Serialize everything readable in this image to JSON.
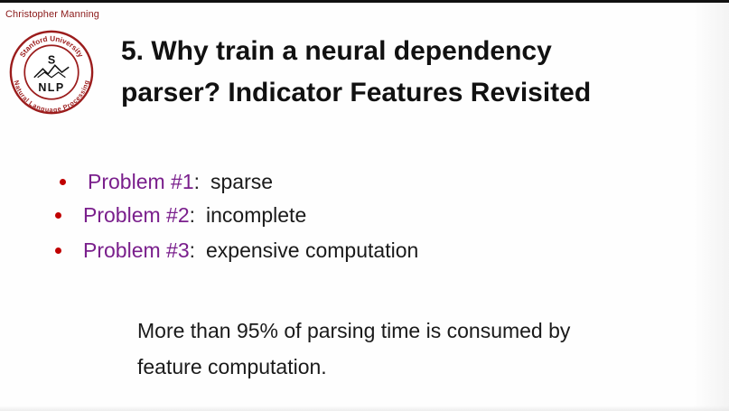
{
  "header": {
    "author": "Christopher Manning"
  },
  "logo": {
    "ring_text_top": "Stanford University",
    "ring_text_bottom": "Natural Language Processing",
    "center_letter": "S",
    "center_word": "NLP",
    "ring_color": "#9b1c1c"
  },
  "title": {
    "line1": "5. Why train a neural dependency",
    "line2": "parser? Indicator Features Revisited"
  },
  "bullets": [
    {
      "label": "Problem #1",
      "separator": ":",
      "text": "sparse"
    },
    {
      "label": "Problem #2",
      "separator": ":",
      "text": "incomplete"
    },
    {
      "label": "Problem #3",
      "separator": ":",
      "text": "expensive computation"
    }
  ],
  "note": {
    "line1": "More than 95% of parsing time is consumed by",
    "line2": "feature computation."
  },
  "colors": {
    "bullet_dot": "#c00000",
    "label_purple": "#7a1f8c",
    "author_red": "#8b1a1a"
  }
}
